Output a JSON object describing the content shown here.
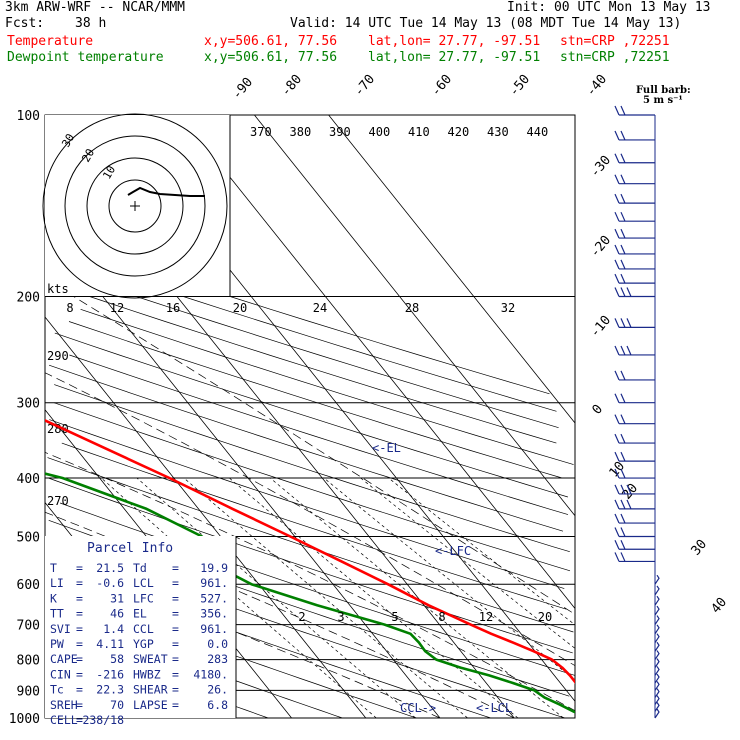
{
  "header": {
    "model": "3km ARW-WRF -- NCAR/MMM",
    "init": "Init: 00 UTC Mon 13 May 13",
    "fcst_label": "Fcst:",
    "fcst_value": "38 h",
    "valid": "Valid: 14 UTC Tue 14 May 13 (08 MDT Tue 14 May 13)",
    "temp_label": "Temperature",
    "dew_label": "Dewpoint temperature",
    "xy": "x,y=506.61, 77.56",
    "latlon": "lat,lon= 27.77, -97.51",
    "stn": "stn=CRP ,72251",
    "colors": {
      "temp": "#ff0000",
      "dew": "#008000",
      "text": "#000000",
      "parcel": "#1a2a8a"
    }
  },
  "barb_key": {
    "title": "Full barb:",
    "units": "5 m s⁻¹"
  },
  "hodograph": {
    "units": "kts",
    "ring_labels": [
      "30",
      "20",
      "10"
    ]
  },
  "parcel_info": {
    "title": "Parcel Info",
    "rows": [
      [
        "T",
        "21.5",
        "Td",
        "19.9"
      ],
      [
        "LI",
        "-0.6",
        "LCL",
        "961."
      ],
      [
        "K",
        "31",
        "LFC",
        "527."
      ],
      [
        "TT",
        "46",
        "EL",
        "356."
      ],
      [
        "SVI",
        "1.4",
        "CCL",
        "961."
      ],
      [
        "PW",
        "4.11",
        "YGP",
        "0.0"
      ],
      [
        "CAPE",
        "58",
        "SWEAT",
        "283"
      ],
      [
        "CIN",
        "-216",
        "HWBZ",
        "4180."
      ],
      [
        "Tc",
        "22.3",
        "SHEAR",
        "26."
      ],
      [
        "SREH",
        "70",
        "LAPSE",
        "6.8"
      ],
      [
        "CELL",
        "238/18",
        "",
        ""
      ]
    ]
  },
  "chart_data": {
    "type": "line",
    "title": "Skew-T log-P sounding",
    "y_axis": {
      "scale": "log",
      "range": [
        1000,
        100
      ],
      "ticks": [
        100,
        200,
        300,
        400,
        500,
        600,
        700,
        800,
        900,
        1000
      ]
    },
    "isotherm_labels": [
      "-90",
      "-80",
      "-70",
      "-60",
      "-50",
      "-40",
      "-30",
      "-20",
      "-10",
      "0",
      "10",
      "20",
      "30",
      "40"
    ],
    "theta_labels": [
      "370",
      "380",
      "390",
      "400",
      "410",
      "420",
      "430",
      "440"
    ],
    "theta_labels_left": [
      "290",
      "280",
      "270"
    ],
    "mixing_ratio_labels": [
      "8",
      "12",
      "16",
      "20",
      "24",
      "28",
      "32"
    ],
    "mixing_ratio_labels_low": [
      "2",
      "3",
      "5",
      "8",
      "12",
      "20"
    ],
    "annotations": [
      "<-EL",
      "<-LFC",
      "CCL->",
      "<-LCL"
    ],
    "series": [
      {
        "name": "Temperature",
        "color": "#ff0000",
        "points": [
          [
            1000,
            21.5
          ],
          [
            975,
            20.4
          ],
          [
            950,
            19.8
          ],
          [
            925,
            20.6
          ],
          [
            900,
            21.6
          ],
          [
            875,
            22.1
          ],
          [
            850,
            22.1
          ],
          [
            825,
            21.9
          ],
          [
            800,
            21.4
          ],
          [
            775,
            19.8
          ],
          [
            750,
            18.0
          ],
          [
            725,
            16.0
          ],
          [
            700,
            14.2
          ],
          [
            650,
            10.6
          ],
          [
            600,
            7.4
          ],
          [
            550,
            3.6
          ],
          [
            500,
            -0.6
          ],
          [
            450,
            -5.4
          ],
          [
            400,
            -10.6
          ],
          [
            350,
            -17.0
          ],
          [
            300,
            -24.4
          ],
          [
            250,
            -33.6
          ],
          [
            200,
            -44.8
          ],
          [
            175,
            -51.5
          ],
          [
            150,
            -58.5
          ],
          [
            125,
            -65.5
          ],
          [
            110,
            -70.5
          ],
          [
            100,
            -74.0
          ]
        ]
      },
      {
        "name": "Dewpoint temperature",
        "color": "#008000",
        "points": [
          [
            1000,
            19.9
          ],
          [
            975,
            18.7
          ],
          [
            950,
            17.6
          ],
          [
            925,
            16.3
          ],
          [
            900,
            15.7
          ],
          [
            875,
            13.6
          ],
          [
            850,
            11.2
          ],
          [
            825,
            8.2
          ],
          [
            800,
            5.8
          ],
          [
            775,
            5.2
          ],
          [
            750,
            5.3
          ],
          [
            725,
            5.1
          ],
          [
            700,
            2.6
          ],
          [
            650,
            -4.4
          ],
          [
            600,
            -11.0
          ],
          [
            550,
            -14.5
          ],
          [
            500,
            -12.5
          ],
          [
            450,
            -17.0
          ],
          [
            400,
            -25.0
          ],
          [
            350,
            -40.0
          ],
          [
            330,
            -48.0
          ],
          [
            300,
            -60.0
          ],
          [
            250,
            -68.0
          ],
          [
            225,
            -69.0
          ],
          [
            200,
            -72.0
          ],
          [
            175,
            -78.0
          ],
          [
            160,
            -80.5
          ],
          [
            150,
            -81.0
          ],
          [
            135,
            -79.5
          ],
          [
            120,
            -77.5
          ],
          [
            110,
            -75.5
          ],
          [
            100,
            -73.0
          ]
        ]
      }
    ],
    "wind_barbs_kts": [
      [
        1000,
        20
      ],
      [
        975,
        20
      ],
      [
        950,
        15
      ],
      [
        925,
        15
      ],
      [
        900,
        15
      ],
      [
        875,
        15
      ],
      [
        850,
        15
      ],
      [
        825,
        15
      ],
      [
        800,
        15
      ],
      [
        775,
        15
      ],
      [
        750,
        10
      ],
      [
        725,
        10
      ],
      [
        700,
        10
      ],
      [
        675,
        10
      ],
      [
        650,
        5
      ],
      [
        625,
        5
      ],
      [
        600,
        5
      ],
      [
        550,
        20
      ],
      [
        525,
        20
      ],
      [
        500,
        20
      ],
      [
        475,
        20
      ],
      [
        450,
        25
      ],
      [
        425,
        25
      ],
      [
        400,
        20
      ],
      [
        375,
        20
      ],
      [
        350,
        20
      ],
      [
        325,
        20
      ],
      [
        300,
        20
      ],
      [
        275,
        20
      ],
      [
        250,
        25
      ],
      [
        225,
        25
      ],
      [
        200,
        25
      ],
      [
        190,
        20
      ],
      [
        180,
        20
      ],
      [
        170,
        20
      ],
      [
        160,
        20
      ],
      [
        150,
        20
      ],
      [
        140,
        20
      ],
      [
        130,
        20
      ],
      [
        120,
        20
      ],
      [
        110,
        20
      ],
      [
        100,
        20
      ]
    ]
  }
}
